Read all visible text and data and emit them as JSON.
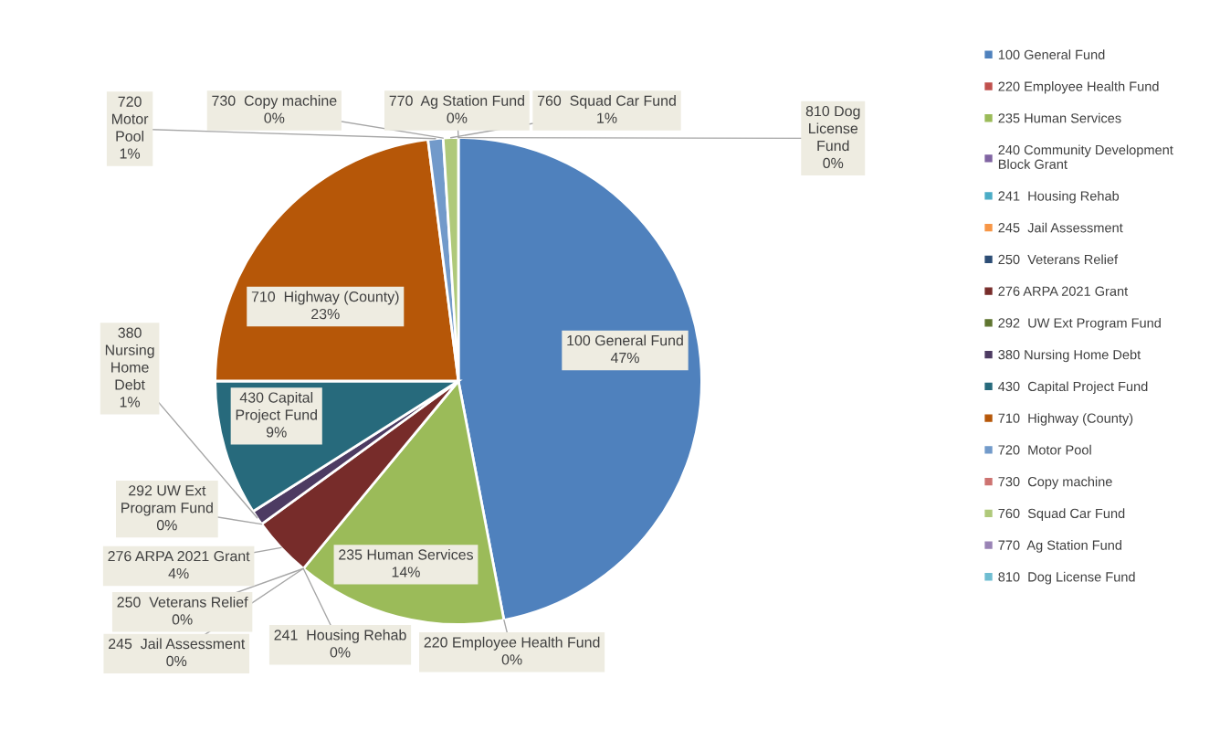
{
  "chart_data": {
    "type": "pie",
    "categories": [
      "100 General Fund",
      "220 Employee Health Fund",
      "235 Human Services",
      "240 Community Development Block Grant",
      "241  Housing Rehab",
      "245  Jail Assessment",
      "250  Veterans Relief",
      "276 ARPA 2021 Grant",
      "292  UW Ext Program Fund",
      "380 Nursing Home Debt",
      "430  Capital Project Fund",
      "710  Highway (County)",
      "720  Motor Pool",
      "730  Copy machine",
      "760  Squad Car Fund",
      "770  Ag Station Fund",
      "810  Dog License Fund"
    ],
    "values": [
      47,
      0,
      14,
      0,
      0,
      0,
      0,
      4,
      0,
      1,
      9,
      23,
      1,
      0,
      1,
      0,
      0
    ],
    "colors": [
      "#4f81bd",
      "#c0504d",
      "#9bbb59",
      "#8064a2",
      "#4bacc6",
      "#f79646",
      "#2c4d75",
      "#772c2a",
      "#5f7530",
      "#4d3b62",
      "#276a7c",
      "#b65708",
      "#729aca",
      "#cd7371",
      "#afc97a",
      "#9983b5",
      "#6fbdd1"
    ],
    "value_labels": [
      "47%",
      "0%",
      "14%",
      null,
      "0%",
      "0%",
      "0%",
      "4%",
      "0%",
      "1%",
      "9%",
      "23%",
      "1%",
      "0%",
      "1%",
      "0%",
      "0%"
    ],
    "legend": "right"
  }
}
